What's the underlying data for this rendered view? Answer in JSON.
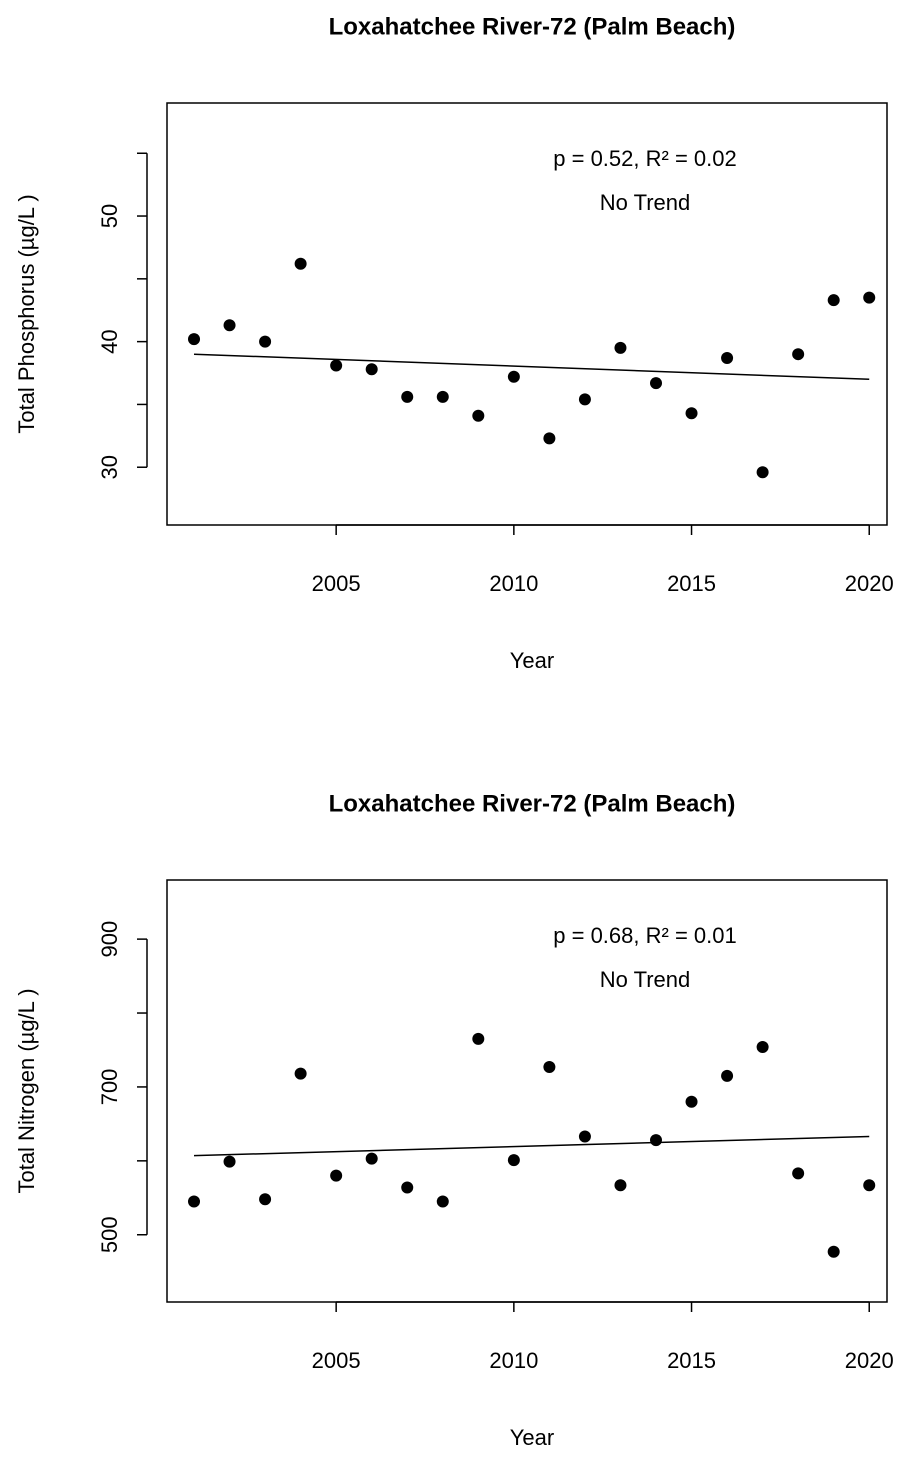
{
  "chart_data": [
    {
      "type": "scatter",
      "title": "Loxahatchee River-72 (Palm Beach)",
      "x_label": "Year",
      "y_label": "Total Phosphorus (µg/L )",
      "annotation": [
        "p = 0.52, R² = 0.02",
        "No Trend"
      ],
      "x": [
        2001,
        2002,
        2003,
        2004,
        2005,
        2006,
        2007,
        2008,
        2009,
        2010,
        2011,
        2012,
        2013,
        2014,
        2015,
        2016,
        2017,
        2018,
        2019,
        2020
      ],
      "values": [
        40.2,
        41.3,
        40.0,
        46.2,
        38.1,
        37.8,
        35.6,
        35.6,
        34.1,
        37.2,
        32.3,
        35.4,
        39.5,
        36.7,
        34.3,
        38.7,
        29.6,
        39.0,
        43.3,
        43.5
      ],
      "color": "#000000",
      "trend": {
        "x": [
          2001,
          2020
        ],
        "values": [
          39.0,
          37.0
        ]
      },
      "xlim": [
        2000.24,
        2020.5
      ],
      "xticks": [
        2005,
        2010,
        2015,
        2020
      ],
      "ylim": [
        25.4,
        59.0
      ],
      "yticks": [
        30,
        40,
        50
      ],
      "yminor_ticks": [
        35,
        45,
        55
      ]
    },
    {
      "type": "scatter",
      "title": "Loxahatchee River-72 (Palm Beach)",
      "x_label": "Year",
      "y_label": "Total Nitrogen (µg/L )",
      "annotation": [
        "p = 0.68, R² = 0.01",
        "No Trend"
      ],
      "x": [
        2001,
        2002,
        2003,
        2004,
        2005,
        2006,
        2007,
        2008,
        2009,
        2010,
        2011,
        2012,
        2013,
        2014,
        2015,
        2016,
        2017,
        2018,
        2019,
        2020
      ],
      "values": [
        545,
        599,
        548,
        718,
        580,
        603,
        564,
        545,
        765,
        601,
        727,
        633,
        567,
        628,
        680,
        715,
        754,
        583,
        477,
        567
      ],
      "color": "#000000",
      "trend": {
        "x": [
          2001,
          2020
        ],
        "values": [
          607,
          633
        ]
      },
      "xlim": [
        2000.24,
        2020.5
      ],
      "xticks": [
        2005,
        2010,
        2015,
        2020
      ],
      "ylim": [
        409,
        980
      ],
      "yticks": [
        500,
        700,
        900
      ],
      "yminor_ticks": [
        600,
        800
      ]
    }
  ]
}
